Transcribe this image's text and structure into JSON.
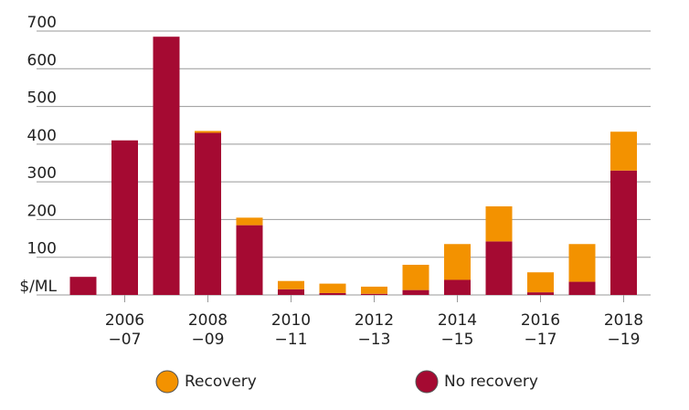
{
  "chart_data": {
    "type": "stacked-bar",
    "categories": [
      null,
      "2006\n−07",
      null,
      "2008\n−09",
      null,
      "2010\n−11",
      null,
      "2012\n−13",
      null,
      "2014\n−15",
      null,
      "2016\n−17",
      null,
      "2018\n−19"
    ],
    "series": [
      {
        "name": "No recovery",
        "color": "#a50a32",
        "values": [
          48,
          410,
          685,
          430,
          185,
          15,
          5,
          3,
          13,
          40,
          142,
          7,
          35,
          330
        ]
      },
      {
        "name": "Recovery",
        "color": "#f39200",
        "values": [
          0,
          0,
          0,
          5,
          20,
          22,
          25,
          19,
          67,
          95,
          93,
          53,
          100,
          103
        ]
      }
    ],
    "legend_order": [
      1,
      0
    ],
    "ylim": [
      0,
      700
    ],
    "yticks": [
      {
        "value": 0,
        "label": "$/ML"
      },
      100,
      200,
      300,
      400,
      500,
      600,
      700
    ],
    "grid": true
  }
}
